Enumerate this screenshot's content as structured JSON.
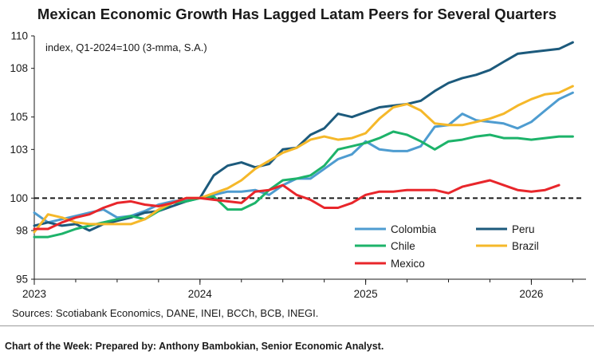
{
  "title": "Mexican Economic Growth Has Lagged Latam Peers for Several Quarters",
  "source": "Sources: Scotiabank Economics, DANE, INEI, BCCh, BCB, INEGI.",
  "footer": "Chart of the Week:  Prepared by: Anthony Bambokian, Senior Economic Analyst.",
  "chart_data": {
    "type": "line",
    "unit_label": "index, Q1-2024=100 (3-mma, S.A.)",
    "ylim": [
      95,
      110
    ],
    "yticks": [
      95,
      98,
      100,
      103,
      105,
      108,
      110
    ],
    "xlim": [
      2023.0,
      2026.33
    ],
    "xticks": [
      "2023",
      "2024",
      "2025",
      "2026"
    ],
    "x": [
      2023.0,
      2023.083,
      2023.167,
      2023.25,
      2023.333,
      2023.417,
      2023.5,
      2023.583,
      2023.667,
      2023.75,
      2023.833,
      2023.917,
      2024.0,
      2024.083,
      2024.167,
      2024.25,
      2024.333,
      2024.417,
      2024.5,
      2024.583,
      2024.667,
      2024.75,
      2024.833,
      2024.917,
      2025.0,
      2025.083,
      2025.167,
      2025.25,
      2025.333,
      2025.417,
      2025.5,
      2025.583,
      2025.667,
      2025.75,
      2025.833,
      2025.917,
      2026.0,
      2026.083,
      2026.167,
      2026.25
    ],
    "reference_line": 100,
    "legend_position": "lower-right",
    "series": [
      {
        "name": "Colombia",
        "color": "#4e9cd0",
        "values": [
          99.1,
          98.5,
          98.7,
          98.9,
          99.1,
          99.3,
          98.8,
          98.9,
          99.2,
          99.6,
          99.8,
          99.9,
          100.0,
          100.2,
          100.4,
          100.4,
          100.5,
          100.2,
          100.8,
          101.2,
          101.2,
          101.8,
          102.4,
          102.7,
          103.5,
          103.0,
          102.9,
          102.9,
          103.2,
          104.4,
          104.5,
          105.2,
          104.8,
          104.7,
          104.6,
          104.3,
          104.7,
          105.4,
          106.1,
          106.5
        ]
      },
      {
        "name": "Peru",
        "color": "#1c5a7c",
        "values": [
          98.3,
          98.5,
          98.3,
          98.4,
          98.0,
          98.4,
          98.6,
          98.8,
          99.1,
          99.2,
          99.5,
          99.8,
          100.0,
          101.4,
          102.0,
          102.2,
          101.9,
          102.1,
          103.0,
          103.1,
          103.9,
          104.3,
          105.2,
          105.0,
          105.3,
          105.6,
          105.7,
          105.8,
          106.0,
          106.6,
          107.1,
          107.4,
          107.6,
          107.9,
          108.4,
          108.9,
          109.0,
          109.1,
          109.2,
          109.6
        ]
      },
      {
        "name": "Chile",
        "color": "#1db36a",
        "values": [
          97.6,
          97.6,
          97.8,
          98.1,
          98.3,
          98.5,
          98.7,
          98.9,
          98.7,
          99.2,
          99.7,
          99.8,
          100.0,
          100.1,
          99.3,
          99.3,
          99.7,
          100.5,
          101.1,
          101.2,
          101.4,
          102.0,
          103.0,
          103.2,
          103.4,
          103.7,
          104.1,
          103.9,
          103.5,
          103.0,
          103.5,
          103.6,
          103.8,
          103.9,
          103.7,
          103.7,
          103.6,
          103.7,
          103.8,
          103.8
        ]
      },
      {
        "name": "Brazil",
        "color": "#f5b82a",
        "values": [
          97.9,
          99.0,
          98.8,
          98.5,
          98.4,
          98.4,
          98.4,
          98.4,
          98.7,
          99.3,
          99.7,
          100.0,
          100.0,
          100.3,
          100.6,
          101.1,
          101.8,
          102.3,
          102.8,
          103.1,
          103.6,
          103.8,
          103.6,
          103.7,
          104.0,
          104.9,
          105.6,
          105.8,
          105.4,
          104.6,
          104.5,
          104.5,
          104.7,
          104.9,
          105.2,
          105.7,
          106.1,
          106.4,
          106.5,
          106.9
        ]
      },
      {
        "name": "Mexico",
        "color": "#e8262b",
        "values": [
          98.1,
          98.1,
          98.5,
          98.8,
          99.0,
          99.4,
          99.7,
          99.8,
          99.6,
          99.5,
          99.7,
          100.0,
          100.0,
          99.9,
          99.8,
          99.7,
          100.4,
          100.5,
          100.8,
          100.2,
          99.9,
          99.4,
          99.4,
          99.7,
          100.2,
          100.4,
          100.4,
          100.5,
          100.5,
          100.5,
          100.3,
          100.7,
          100.9,
          101.1,
          100.8,
          100.5,
          100.4,
          100.5,
          100.8,
          null
        ]
      }
    ]
  }
}
